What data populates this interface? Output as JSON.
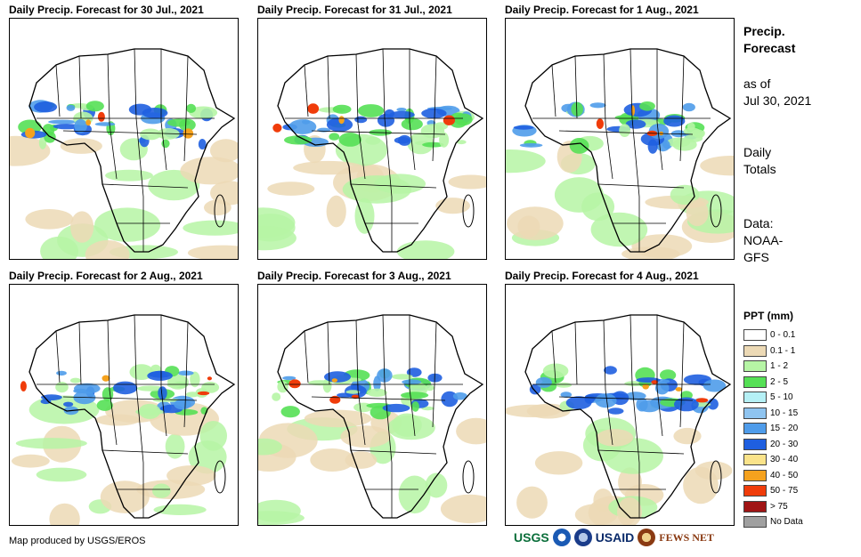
{
  "panels": [
    {
      "title": "Daily Precip. Forecast for 30 Jul., 2021"
    },
    {
      "title": "Daily Precip. Forecast for 31 Jul., 2021"
    },
    {
      "title": "Daily Precip. Forecast for 1 Aug., 2021"
    },
    {
      "title": "Daily Precip. Forecast for 2 Aug., 2021"
    },
    {
      "title": "Daily Precip. Forecast for 3 Aug., 2021"
    },
    {
      "title": "Daily Precip. Forecast for 4 Aug., 2021"
    }
  ],
  "sidebar": {
    "title_line1": "Precip.",
    "title_line2": "Forecast",
    "asof_line1": "as of",
    "asof_line2": "Jul 30, 2021",
    "totals_line1": "Daily",
    "totals_line2": "Totals",
    "data_line1": "Data:",
    "data_line2": "NOAA-",
    "data_line3": "GFS"
  },
  "legend": {
    "title": "PPT (mm)",
    "items": [
      {
        "label": "0 - 0.1",
        "color": "#ffffff"
      },
      {
        "label": "0.1 - 1",
        "color": "#ecd9b5"
      },
      {
        "label": "1 - 2",
        "color": "#b6f5a5"
      },
      {
        "label": "2 - 5",
        "color": "#55e055"
      },
      {
        "label": "5 - 10",
        "color": "#b5f0f5"
      },
      {
        "label": "10 - 15",
        "color": "#8fc4f0"
      },
      {
        "label": "15 - 20",
        "color": "#4f9cea"
      },
      {
        "label": "20 - 30",
        "color": "#1f5fe0"
      },
      {
        "label": "30 - 40",
        "color": "#fae38a"
      },
      {
        "label": "40 - 50",
        "color": "#f5a21e"
      },
      {
        "label": "50 - 75",
        "color": "#f03c0a"
      },
      {
        "label": "> 75",
        "color": "#a01414"
      },
      {
        "label": "No Data",
        "color": "#a0a0a0"
      }
    ]
  },
  "footer": {
    "credit": "Map produced by USGS/EROS"
  },
  "logos": {
    "usgs": "USGS",
    "usaid": "USAID",
    "fews": "FEWS NET"
  },
  "colors": {
    "ocean_dry": "#ecd9b5",
    "light_green": "#b6f5a5",
    "green": "#55e055",
    "blue": "#4f9cea",
    "dark_blue": "#1f5fe0",
    "red": "#f03c0a",
    "orange": "#f5a21e"
  }
}
